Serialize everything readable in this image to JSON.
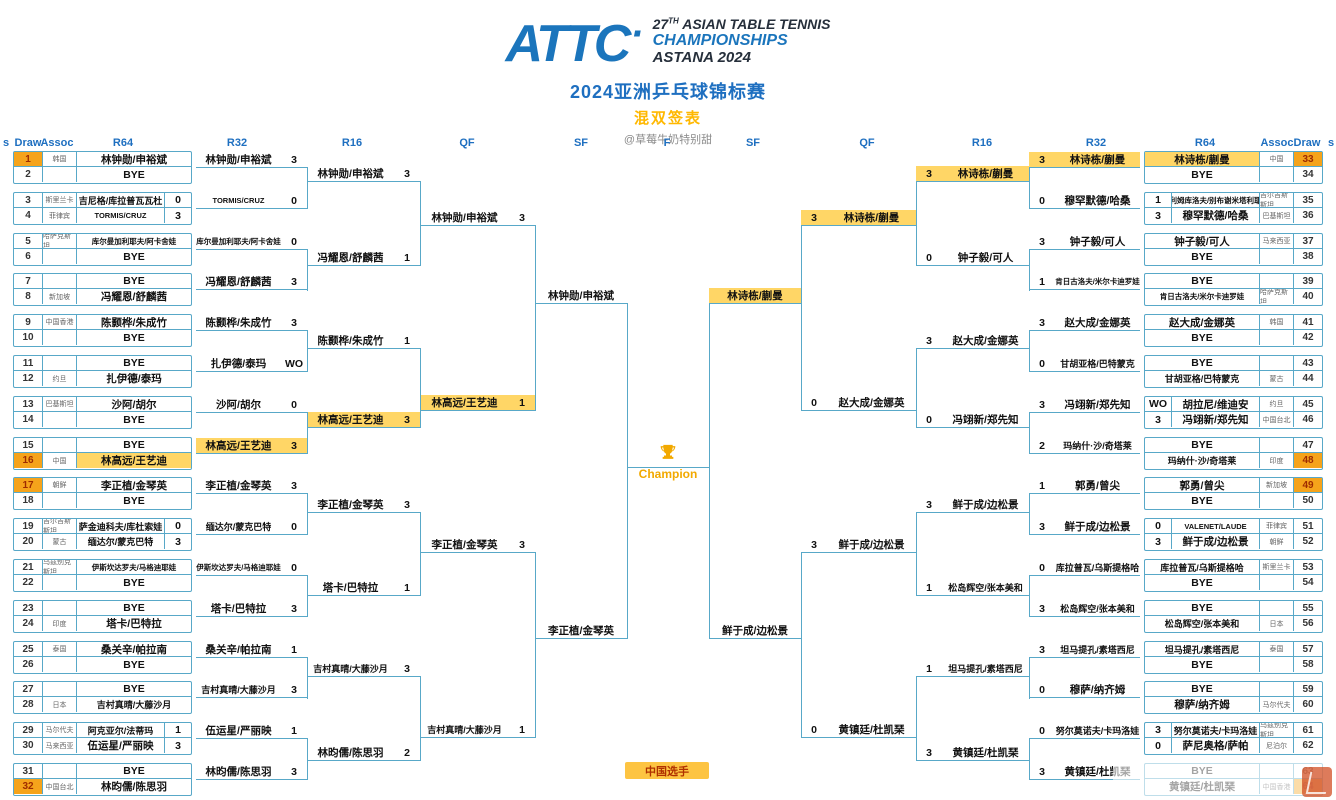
{
  "header": {
    "logo": "ATTC",
    "logo_dot": "·",
    "edition_number": "27",
    "edition_suffix": "TH",
    "event_line1": " ASIAN TABLE TENNIS",
    "event_line2": "CHAMPIONSHIPS",
    "event_line3": "ASTANA 2024",
    "title_cn": "2024亚洲乒乓球锦标赛",
    "subtitle_cn": "混双签表",
    "credit": "@草莓牛奶特别甜"
  },
  "columns": [
    "s",
    "Draw",
    "Assoc",
    "R64",
    "R32",
    "R16",
    "QF",
    "SF",
    "F",
    "SF",
    "QF",
    "R16",
    "R32",
    "R64",
    "Assoc",
    "Draw",
    "s"
  ],
  "final": {
    "champion_label": "Champion"
  },
  "legend": {
    "label": "中国选手"
  },
  "colors": {
    "accent_blue": "#1E6FC0",
    "line_teal": "#58A8C8",
    "seed_orange": "#F5A31B",
    "china_yellow": "#FFD666",
    "seed_text_red": "#9E2B00",
    "title_yellow": "#FFB800"
  },
  "bracket": {
    "left": {
      "r64": [
        {
          "d": "1",
          "assoc": "韩国",
          "name": "林钟勋/申裕斌",
          "seed_hl": true
        },
        {
          "d": "2",
          "name": "BYE"
        },
        {
          "d": "3",
          "assoc": "斯里兰卡",
          "name": "吉尼格/库拉普瓦瓦杜",
          "score": "0"
        },
        {
          "d": "4",
          "assoc": "菲律宾",
          "name": "TORMIS/CRUZ",
          "score": "3"
        },
        {
          "d": "5",
          "assoc": "哈萨克斯坦",
          "name": "库尔曼加利耶夫/阿卡舍娃"
        },
        {
          "d": "6",
          "name": "BYE"
        },
        {
          "d": "7",
          "name": "BYE"
        },
        {
          "d": "8",
          "assoc": "新加坡",
          "name": "冯耀恩/舒麟茜"
        },
        {
          "d": "9",
          "assoc": "中国香港",
          "name": "陈颢桦/朱成竹"
        },
        {
          "d": "10",
          "name": "BYE"
        },
        {
          "d": "11",
          "name": "BYE"
        },
        {
          "d": "12",
          "assoc": "约旦",
          "name": "扎伊德/泰玛"
        },
        {
          "d": "13",
          "assoc": "巴基斯坦",
          "name": "沙阿/胡尔"
        },
        {
          "d": "14",
          "name": "BYE"
        },
        {
          "d": "15",
          "name": "BYE"
        },
        {
          "d": "16",
          "assoc": "中国",
          "name": "林高远/王艺迪",
          "seed_hl": true,
          "cn_hl": true
        },
        {
          "d": "17",
          "assoc": "朝鲜",
          "name": "李正植/金琴英",
          "seed_hl": true
        },
        {
          "d": "18",
          "name": "BYE"
        },
        {
          "d": "19",
          "assoc": "吉尔吉斯斯坦",
          "name": "萨金迪科夫/库杜索娃",
          "score": "0"
        },
        {
          "d": "20",
          "assoc": "蒙古",
          "name": "缅达尔/蒙克巴特",
          "score": "3"
        },
        {
          "d": "21",
          "assoc": "乌兹别克斯坦",
          "name": "伊斯坎达罗夫/马格迪耶娃"
        },
        {
          "d": "22",
          "name": "BYE"
        },
        {
          "d": "23",
          "name": "BYE"
        },
        {
          "d": "24",
          "assoc": "印度",
          "name": "塔卡/巴特拉"
        },
        {
          "d": "25",
          "assoc": "泰国",
          "name": "桑关辛/帕拉南"
        },
        {
          "d": "26",
          "name": "BYE"
        },
        {
          "d": "27",
          "name": "BYE"
        },
        {
          "d": "28",
          "assoc": "日本",
          "name": "吉村真晴/大藤沙月"
        },
        {
          "d": "29",
          "assoc": "马尔代夫",
          "name": "阿克亚尔/法蒂玛",
          "score": "1"
        },
        {
          "d": "30",
          "assoc": "马来西亚",
          "name": "伍运星/严丽映",
          "score": "3"
        },
        {
          "d": "31",
          "name": "BYE"
        },
        {
          "d": "32",
          "assoc": "中国台北",
          "name": "林昀儒/陈思羽",
          "seed_hl": true
        }
      ],
      "r32": [
        {
          "name": "林钟勋/申裕斌",
          "score": "3"
        },
        {
          "name": "TORMIS/CRUZ",
          "score": "0"
        },
        {
          "name": "库尔曼加利耶夫/阿卡舍娃",
          "score": "0"
        },
        {
          "name": "冯耀恩/舒麟茜",
          "score": "3"
        },
        {
          "name": "陈颢桦/朱成竹",
          "score": "3"
        },
        {
          "name": "扎伊德/泰玛",
          "score": "WO"
        },
        {
          "name": "沙阿/胡尔",
          "score": "0"
        },
        {
          "name": "林高远/王艺迪",
          "score": "3",
          "cn_hl": true
        },
        {
          "name": "李正植/金琴英",
          "score": "3"
        },
        {
          "name": "缅达尔/蒙克巴特",
          "score": "0"
        },
        {
          "name": "伊斯坎达罗夫/马格迪耶娃",
          "score": "0"
        },
        {
          "name": "塔卡/巴特拉",
          "score": "3"
        },
        {
          "name": "桑关辛/帕拉南",
          "score": "1"
        },
        {
          "name": "吉村真晴/大藤沙月",
          "score": "3"
        },
        {
          "name": "伍运星/严丽映",
          "score": "1"
        },
        {
          "name": "林昀儒/陈思羽",
          "score": "3"
        }
      ],
      "r16": [
        {
          "name": "林钟勋/申裕斌",
          "score": "3"
        },
        {
          "name": "冯耀恩/舒麟茜",
          "score": "1"
        },
        {
          "name": "陈颢桦/朱成竹",
          "score": "1"
        },
        {
          "name": "林高远/王艺迪",
          "score": "3",
          "cn_hl": true
        },
        {
          "name": "李正植/金琴英",
          "score": "3"
        },
        {
          "name": "塔卡/巴特拉",
          "score": "1"
        },
        {
          "name": "吉村真晴/大藤沙月",
          "score": "3"
        },
        {
          "name": "林昀儒/陈思羽",
          "score": "2"
        }
      ],
      "qf": [
        {
          "name": "林钟勋/申裕斌",
          "score": "3"
        },
        {
          "name": "林高远/王艺迪",
          "score": "1",
          "cn_hl": true
        },
        {
          "name": "李正植/金琴英",
          "score": "3"
        },
        {
          "name": "吉村真晴/大藤沙月",
          "score": "1"
        }
      ],
      "sf": [
        {
          "name": "林钟勋/申裕斌"
        },
        {
          "name": "李正植/金琴英"
        }
      ]
    },
    "right": {
      "r64": [
        {
          "d": "33",
          "assoc": "中国",
          "name": "林诗栋/蒯曼",
          "seed_hl": true,
          "cn_hl": true
        },
        {
          "d": "34",
          "name": "BYE"
        },
        {
          "d": "35",
          "assoc": "吉尔吉斯斯坦",
          "name": "阿利姆库洛夫/别布谢米塔利耶娃",
          "score": "1"
        },
        {
          "d": "36",
          "assoc": "巴基斯坦",
          "name": "穆罕默德/哈桑",
          "score": "3"
        },
        {
          "d": "37",
          "assoc": "马来西亚",
          "name": "钟子毅/可人"
        },
        {
          "d": "38",
          "name": "BYE"
        },
        {
          "d": "39",
          "name": "BYE"
        },
        {
          "d": "40",
          "assoc": "哈萨克斯坦",
          "name": "肯日古洛夫/米尔卡迪罗娃"
        },
        {
          "d": "41",
          "assoc": "韩国",
          "name": "赵大成/金娜英"
        },
        {
          "d": "42",
          "name": "BYE"
        },
        {
          "d": "43",
          "name": "BYE"
        },
        {
          "d": "44",
          "assoc": "蒙古",
          "name": "甘胡亚格/巴特蒙克"
        },
        {
          "d": "45",
          "assoc": "约旦",
          "name": "胡拉尼/维迪安",
          "score": "WO"
        },
        {
          "d": "46",
          "assoc": "中国台北",
          "name": "冯翊新/郑先知",
          "score": "3"
        },
        {
          "d": "47",
          "name": "BYE"
        },
        {
          "d": "48",
          "assoc": "印度",
          "name": "玛纳什·沙/奇塔莱",
          "seed_hl": true
        },
        {
          "d": "49",
          "assoc": "新加坡",
          "name": "郭勇/曾尖",
          "seed_hl": true
        },
        {
          "d": "50",
          "name": "BYE"
        },
        {
          "d": "51",
          "assoc": "菲律宾",
          "name": "VALENET/LAUDE",
          "score": "0"
        },
        {
          "d": "52",
          "assoc": "朝鲜",
          "name": "鲜于成/边松景",
          "score": "3"
        },
        {
          "d": "53",
          "assoc": "斯里兰卡",
          "name": "库拉普瓦/乌斯提格哈"
        },
        {
          "d": "54",
          "name": "BYE"
        },
        {
          "d": "55",
          "name": "BYE"
        },
        {
          "d": "56",
          "assoc": "日本",
          "name": "松岛辉空/张本美和"
        },
        {
          "d": "57",
          "assoc": "泰国",
          "name": "坦马提孔/素塔西尼"
        },
        {
          "d": "58",
          "name": "BYE"
        },
        {
          "d": "59",
          "name": "BYE"
        },
        {
          "d": "60",
          "assoc": "马尔代夫",
          "name": "穆萨/纳齐姆"
        },
        {
          "d": "61",
          "assoc": "乌兹别克斯坦",
          "name": "努尔莫诺夫/卡玛洛娃",
          "score": "3"
        },
        {
          "d": "62",
          "assoc": "尼泊尔",
          "name": "萨尼奥格/萨帕",
          "score": "0"
        },
        {
          "d": "63",
          "name": "BYE"
        },
        {
          "d": "64",
          "assoc": "中国香港",
          "name": "黄镇廷/杜凯琹",
          "seed_hl": true
        }
      ],
      "r32": [
        {
          "name": "林诗栋/蒯曼",
          "score": "3",
          "cn_hl": true
        },
        {
          "name": "穆罕默德/哈桑",
          "score": "0"
        },
        {
          "name": "钟子毅/可人",
          "score": "3"
        },
        {
          "name": "肯日古洛夫/米尔卡迪罗娃",
          "score": "1"
        },
        {
          "name": "赵大成/金娜英",
          "score": "3"
        },
        {
          "name": "甘胡亚格/巴特蒙克",
          "score": "0"
        },
        {
          "name": "冯翊新/郑先知",
          "score": "3"
        },
        {
          "name": "玛纳什·沙/奇塔莱",
          "score": "2"
        },
        {
          "name": "郭勇/曾尖",
          "score": "1"
        },
        {
          "name": "鲜于成/边松景",
          "score": "3"
        },
        {
          "name": "库拉普瓦/乌斯提格哈",
          "score": "0"
        },
        {
          "name": "松岛辉空/张本美和",
          "score": "3"
        },
        {
          "name": "坦马提孔/素塔西尼",
          "score": "3"
        },
        {
          "name": "穆萨/纳齐姆",
          "score": "0"
        },
        {
          "name": "努尔莫诺夫/卡玛洛娃",
          "score": "0"
        },
        {
          "name": "黄镇廷/杜凯琹",
          "score": "3"
        }
      ],
      "r16": [
        {
          "name": "林诗栋/蒯曼",
          "score": "3",
          "cn_hl": true
        },
        {
          "name": "钟子毅/可人",
          "score": "0"
        },
        {
          "name": "赵大成/金娜英",
          "score": "3"
        },
        {
          "name": "冯翊新/郑先知",
          "score": "0"
        },
        {
          "name": "鲜于成/边松景",
          "score": "3"
        },
        {
          "name": "松岛辉空/张本美和",
          "score": "1"
        },
        {
          "name": "坦马提孔/素塔西尼",
          "score": "1"
        },
        {
          "name": "黄镇廷/杜凯琹",
          "score": "3"
        }
      ],
      "qf": [
        {
          "name": "林诗栋/蒯曼",
          "score": "3",
          "cn_hl": true
        },
        {
          "name": "赵大成/金娜英",
          "score": "0"
        },
        {
          "name": "鲜于成/边松景",
          "score": "3"
        },
        {
          "name": "黄镇廷/杜凯琹",
          "score": "0"
        }
      ],
      "sf": [
        {
          "name": "林诗栋/蒯曼",
          "cn_hl": true
        },
        {
          "name": "鲜于成/边松景"
        }
      ]
    }
  }
}
